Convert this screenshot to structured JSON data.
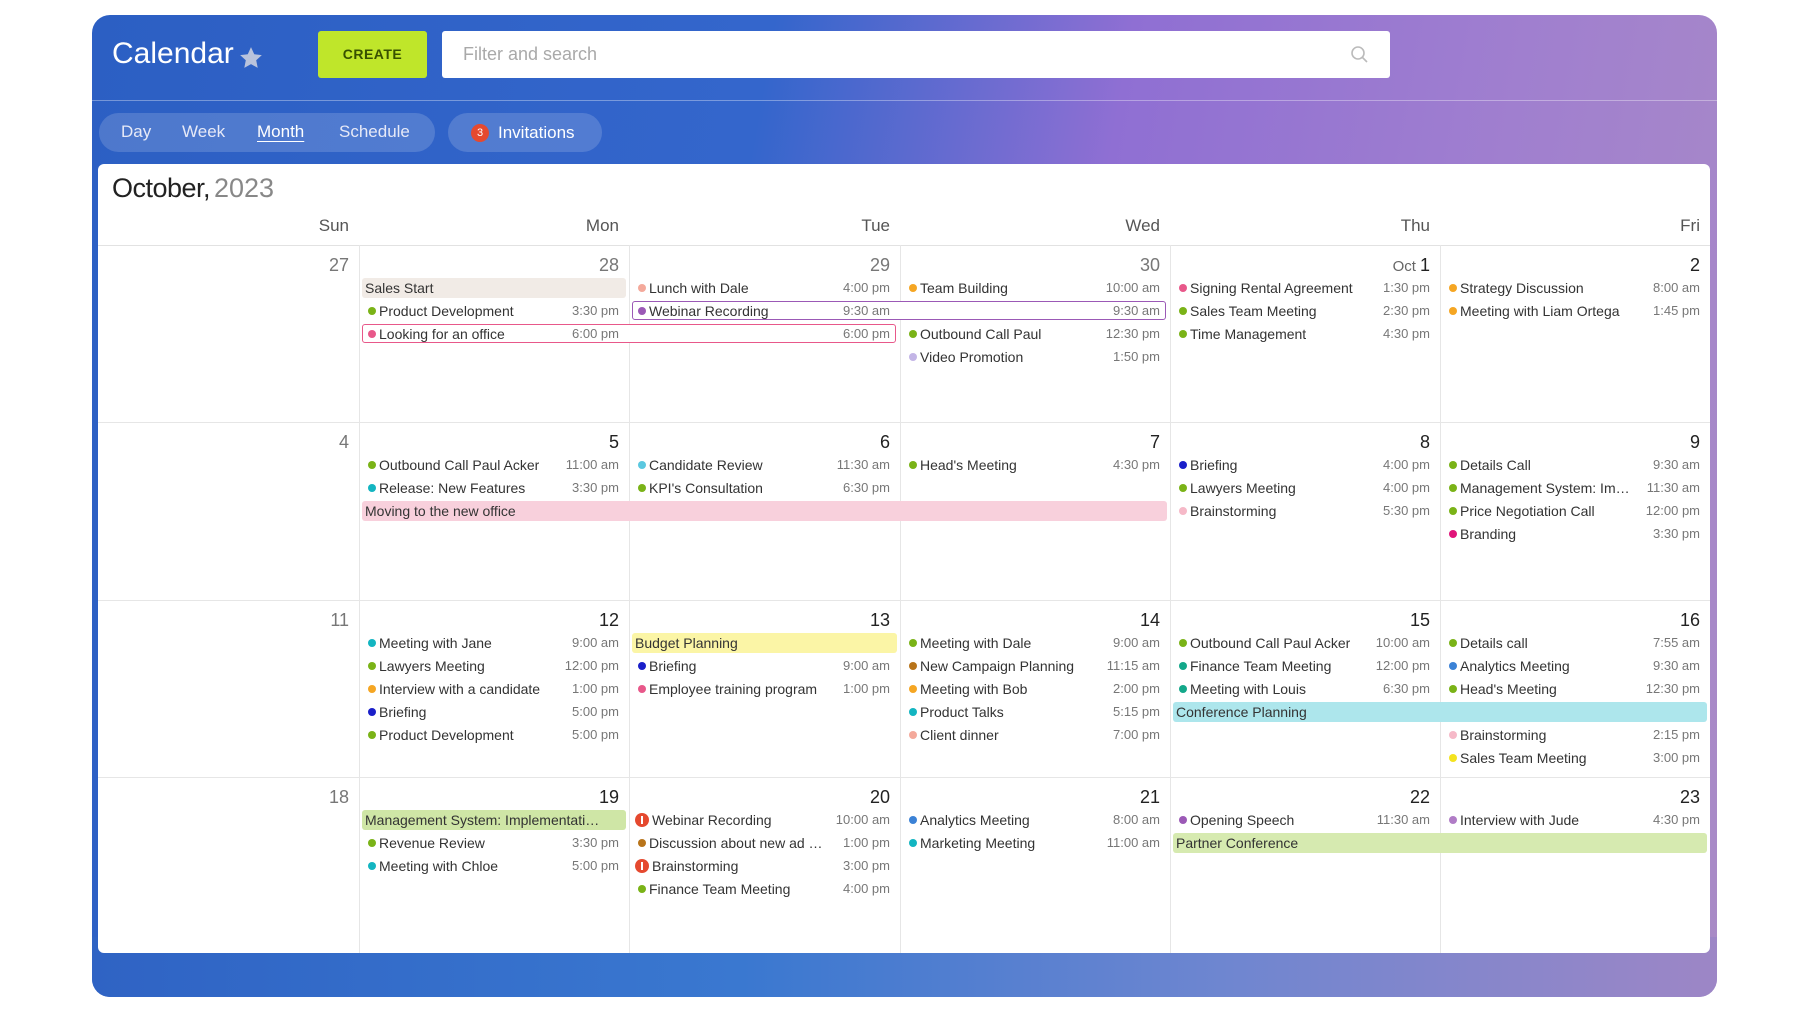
{
  "header": {
    "title": "Calendar",
    "create_button": "CREATE",
    "search_placeholder": "Filter and search"
  },
  "view_tabs": [
    "Day",
    "Week",
    "Month",
    "Schedule"
  ],
  "active_tab": "Month",
  "invitations": {
    "label": "Invitations",
    "count": "3"
  },
  "calendar": {
    "month": "October,",
    "year": "2023",
    "weekdays": [
      "Sun",
      "Mon",
      "Tue",
      "Wed",
      "Thu",
      "Fri"
    ],
    "weeks": [
      {
        "days": [
          {
            "date": "27",
            "events": []
          },
          {
            "date": "28",
            "events": [
              {
                "title": "Sales Start",
                "color": "#f1ebe6",
                "kind": "bar"
              },
              {
                "title": "Product Development",
                "time": "3:30 pm",
                "color": "#7ab317"
              },
              {
                "title": "Looking for an office",
                "time": "6:00 pm",
                "color": "#e8588a",
                "kind": "outline"
              }
            ]
          },
          {
            "date": "29",
            "events": [
              {
                "title": "Lunch with Dale",
                "time": "4:00 pm",
                "color": "#f4a99b"
              },
              {
                "title": "Webinar Recording",
                "time": "9:30 am",
                "color": "#9b59b6",
                "kind": "outline"
              }
            ]
          },
          {
            "date": "30",
            "events": [
              {
                "title": "Team Building",
                "time": "10:00 am",
                "color": "#f5a623"
              },
              {
                "title": "Outbound Call Paul",
                "time": "12:30 pm",
                "color": "#7ab317"
              },
              {
                "title": "Video Promotion",
                "time": "1:50 pm",
                "color": "#c3b5e6"
              }
            ]
          },
          {
            "month": "Oct",
            "date": "1",
            "events": [
              {
                "title": "Signing Rental Agreement",
                "time": "1:30 pm",
                "color": "#e8588a"
              },
              {
                "title": "Sales Team Meeting",
                "time": "2:30 pm",
                "color": "#7ab317"
              },
              {
                "title": "Time Management",
                "time": "4:30 pm",
                "color": "#7ab317"
              }
            ]
          },
          {
            "date": "2",
            "events": [
              {
                "title": "Strategy Discussion",
                "time": "8:00 am",
                "color": "#f5a623"
              },
              {
                "title": "Meeting with Liam Ortega",
                "time": "1:45 pm",
                "color": "#f5a623"
              }
            ]
          }
        ]
      },
      {
        "days": [
          {
            "date": "4",
            "events": []
          },
          {
            "date": "5",
            "events": [
              {
                "title": "Outbound Call Paul Acker",
                "time": "11:00 am",
                "color": "#7ab317"
              },
              {
                "title": "Release: New Features",
                "time": "3:30 pm",
                "color": "#13b5c1"
              },
              {
                "title": "Moving to the new office",
                "color": "#f8d0dc",
                "kind": "bar"
              }
            ]
          },
          {
            "date": "6",
            "events": [
              {
                "title": "Candidate Review",
                "time": "11:30 am",
                "color": "#5bc8e0"
              },
              {
                "title": "KPI's Consultation",
                "time": "6:30 pm",
                "color": "#7ab317"
              }
            ]
          },
          {
            "date": "7",
            "events": [
              {
                "title": "Head's Meeting",
                "time": "4:30 pm",
                "color": "#7ab317"
              }
            ]
          },
          {
            "date": "8",
            "events": [
              {
                "title": "Briefing",
                "time": "4:00 pm",
                "color": "#1a1fc9"
              },
              {
                "title": "Lawyers Meeting",
                "time": "4:00 pm",
                "color": "#7ab317"
              },
              {
                "title": "Brainstorming",
                "time": "5:30 pm",
                "color": "#f6b9c8"
              }
            ]
          },
          {
            "date": "9",
            "events": [
              {
                "title": "Details Call",
                "time": "9:30 am",
                "color": "#7ab317"
              },
              {
                "title": "Management System: Im…",
                "time": "11:30 am",
                "color": "#7ab317"
              },
              {
                "title": "Price Negotiation Call",
                "time": "12:00 pm",
                "color": "#7ab317"
              },
              {
                "title": "Branding",
                "time": "3:30 pm",
                "color": "#e0157a"
              }
            ]
          }
        ]
      },
      {
        "days": [
          {
            "date": "11",
            "events": []
          },
          {
            "date": "12",
            "events": [
              {
                "title": "Meeting with Jane",
                "time": "9:00 am",
                "color": "#13b5c1"
              },
              {
                "title": "Lawyers Meeting",
                "time": "12:00 pm",
                "color": "#7ab317"
              },
              {
                "title": "Interview with a candidate",
                "time": "1:00 pm",
                "color": "#f5a623"
              },
              {
                "title": "Briefing",
                "time": "5:00 pm",
                "color": "#1a1fc9"
              },
              {
                "title": "Product Development",
                "time": "5:00 pm",
                "color": "#7ab317"
              }
            ]
          },
          {
            "date": "13",
            "events": [
              {
                "title": "Budget Planning",
                "color": "#fbf5a6",
                "kind": "bar"
              },
              {
                "title": "Briefing",
                "time": "9:00 am",
                "color": "#1a1fc9"
              },
              {
                "title": "Employee training program",
                "time": "1:00 pm",
                "color": "#e8588a"
              }
            ]
          },
          {
            "date": "14",
            "events": [
              {
                "title": "Meeting with Dale",
                "time": "9:00 am",
                "color": "#7ab317"
              },
              {
                "title": "New Campaign Planning",
                "time": "11:15 am",
                "color": "#b8741a"
              },
              {
                "title": "Meeting with Bob",
                "time": "2:00 pm",
                "color": "#f5a623"
              },
              {
                "title": "Product Talks",
                "time": "5:15 pm",
                "color": "#13b5c1"
              },
              {
                "title": "Client dinner",
                "time": "7:00 pm",
                "color": "#f4a99b"
              }
            ]
          },
          {
            "date": "15",
            "events": [
              {
                "title": "Outbound Call Paul Acker",
                "time": "10:00 am",
                "color": "#7ab317"
              },
              {
                "title": "Finance Team Meeting",
                "time": "12:00 pm",
                "color": "#13a88a"
              },
              {
                "title": "Meeting with Louis",
                "time": "6:30 pm",
                "color": "#13a88a"
              },
              {
                "title": "Conference Planning",
                "color": "#ade6ec",
                "kind": "bar"
              }
            ]
          },
          {
            "date": "16",
            "events": [
              {
                "title": "Details call",
                "time": "7:55 am",
                "color": "#7ab317"
              },
              {
                "title": "Analytics Meeting",
                "time": "9:30 am",
                "color": "#3b82d6"
              },
              {
                "title": "Head's Meeting",
                "time": "12:30 pm",
                "color": "#7ab317"
              },
              {
                "title": "Brainstorming",
                "time": "2:15 pm",
                "color": "#f6b9c8"
              },
              {
                "title": "Sales Team Meeting",
                "time": "3:00 pm",
                "color": "#f4e31f"
              }
            ]
          }
        ]
      },
      {
        "days": [
          {
            "date": "18",
            "events": []
          },
          {
            "date": "19",
            "events": [
              {
                "title": "Management System: Implementati…",
                "color": "#cfe6a6",
                "kind": "bar"
              },
              {
                "title": "Revenue Review",
                "time": "3:30 pm",
                "color": "#7ab317"
              },
              {
                "title": "Meeting with Chloe",
                "time": "5:00 pm",
                "color": "#13b5c1"
              }
            ]
          },
          {
            "date": "20",
            "events": [
              {
                "title": "Webinar Recording",
                "time": "10:00 am",
                "color": "#e5492f",
                "alert": true
              },
              {
                "title": "Discussion about new ad …",
                "time": "1:00 pm",
                "color": "#b8741a"
              },
              {
                "title": "Brainstorming",
                "time": "3:00 pm",
                "color": "#e5492f",
                "alert": true
              },
              {
                "title": "Finance Team Meeting",
                "time": "4:00 pm",
                "color": "#7ab317"
              }
            ]
          },
          {
            "date": "21",
            "events": [
              {
                "title": "Analytics Meeting",
                "time": "8:00 am",
                "color": "#3b82d6"
              },
              {
                "title": "Marketing Meeting",
                "time": "11:00 am",
                "color": "#13b5c1"
              }
            ]
          },
          {
            "date": "22",
            "events": [
              {
                "title": "Opening Speech",
                "time": "11:30 am",
                "color": "#9b59b6"
              },
              {
                "title": "Partner Conference",
                "color": "#d6eab0",
                "kind": "bar"
              }
            ]
          },
          {
            "date": "23",
            "events": [
              {
                "title": "Interview with Jude",
                "time": "4:30 pm",
                "color": "#b07cc6"
              }
            ]
          }
        ]
      }
    ]
  }
}
